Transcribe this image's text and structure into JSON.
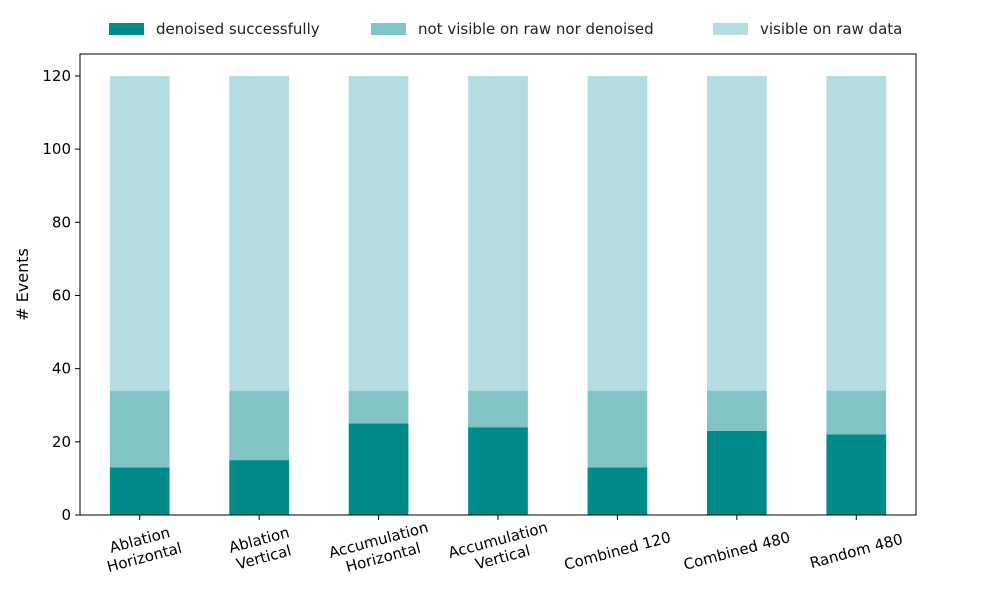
{
  "chart_data": {
    "type": "bar",
    "stacked": true,
    "categories": [
      [
        "Ablation",
        "Horizontal"
      ],
      [
        "Ablation",
        "Vertical"
      ],
      [
        "Accumulation",
        "Horizontal"
      ],
      [
        "Accumulation",
        "Vertical"
      ],
      [
        "Combined 120"
      ],
      [
        "Combined 480"
      ],
      [
        "Random 480"
      ]
    ],
    "series": [
      {
        "name": "denoised successfully",
        "color": "#008b8b",
        "values": [
          13,
          15,
          25,
          24,
          13,
          23,
          22
        ]
      },
      {
        "name": "not visible on raw nor denoised",
        "color": "#80c4c6",
        "values": [
          21,
          19,
          9,
          10,
          21,
          11,
          12
        ]
      },
      {
        "name": "visible on raw data",
        "color": "#b3dde0",
        "values": [
          86,
          86,
          86,
          86,
          86,
          86,
          86
        ]
      }
    ],
    "xlabel": "",
    "ylabel": "# Events",
    "ylim": [
      0,
      126
    ],
    "yticks": [
      0,
      20,
      40,
      60,
      80,
      100,
      120
    ],
    "x_tick_rotation_deg": -15,
    "grid": false,
    "legend_position": "top, above plot"
  }
}
